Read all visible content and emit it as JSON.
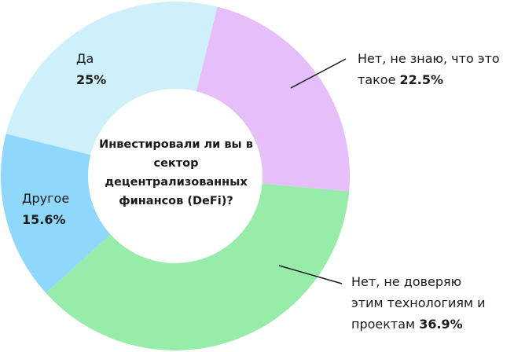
{
  "chart_data": {
    "type": "donut",
    "title": "Инвестировали ли вы в сектор децентрализованных финансов (DeFi)?",
    "categories": [
      "Нет, не знаю, что это такое",
      "Нет, не доверяю этим технологиям и проектам",
      "Другое",
      "Да"
    ],
    "values": [
      22.5,
      36.9,
      15.6,
      25
    ],
    "value_labels": [
      "22.5%",
      "36.9%",
      "15.6%",
      "25%"
    ],
    "colors": [
      "#e6bffa",
      "#98ecaa",
      "#8fd8fc",
      "#cdf0fb"
    ]
  }
}
